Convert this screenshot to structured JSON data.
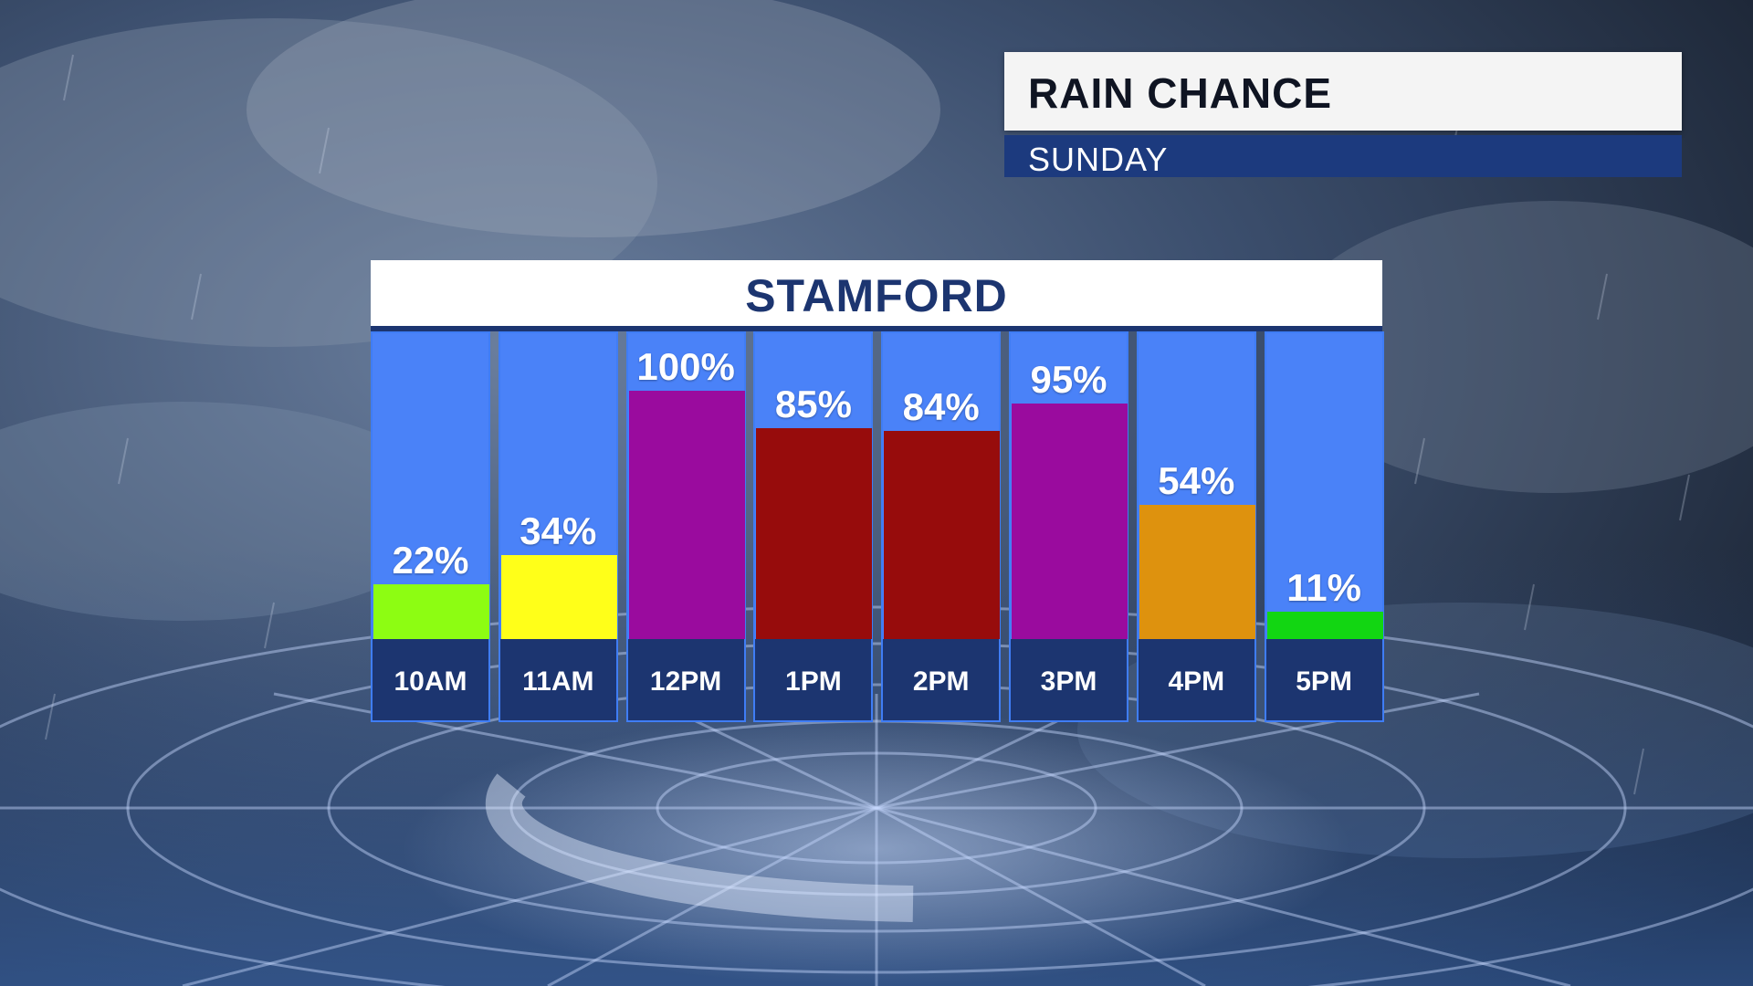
{
  "header": {
    "title": "RAIN CHANCE",
    "subtitle": "SUNDAY"
  },
  "chart_data": {
    "type": "bar",
    "title": "STAMFORD",
    "categories": [
      "10AM",
      "11AM",
      "12PM",
      "1PM",
      "2PM",
      "3PM",
      "4PM",
      "5PM"
    ],
    "values": [
      22,
      34,
      100,
      85,
      84,
      95,
      54,
      11
    ],
    "value_labels": [
      "22%",
      "34%",
      "100%",
      "85%",
      "84%",
      "95%",
      "54%",
      "11%"
    ],
    "unit": "%",
    "ylim": [
      0,
      100
    ],
    "bar_colors": [
      "#8dfd12",
      "#ffff19",
      "#9a0b9e",
      "#970c0c",
      "#970c0c",
      "#9a0b9e",
      "#de920e",
      "#12d612"
    ],
    "grid": false,
    "legend": "none"
  },
  "colors": {
    "panel_background": "#4a82f8",
    "label_band": "#1c3570",
    "subtitle_band": "#1c3a7e"
  }
}
